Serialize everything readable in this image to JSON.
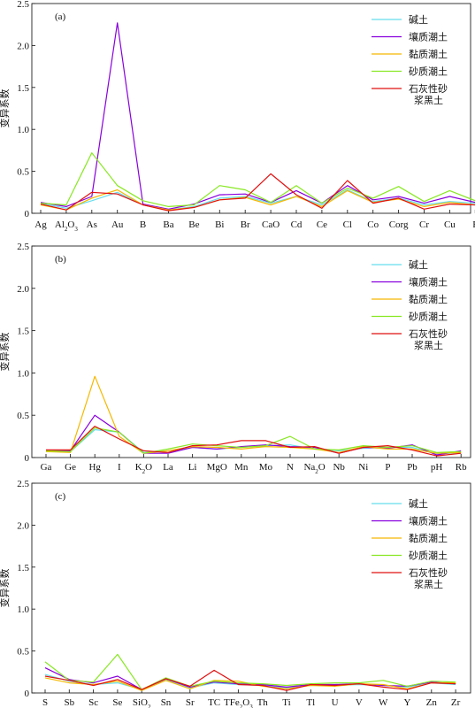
{
  "figure": {
    "ylabel": "变异系数",
    "legend": [
      "碱土",
      "壤质潮土",
      "黏质潮土",
      "砂质潮土",
      "石灰性砂\n浆黑土"
    ],
    "colors": [
      "#66ddee",
      "#8800dd",
      "#f5b800",
      "#88e822",
      "#e01010"
    ]
  },
  "chart_data": [
    {
      "type": "line",
      "panel": "(a)",
      "ylabel": "变异系数",
      "ylim": [
        0,
        2.5
      ],
      "yticks": [
        "0",
        "0.5",
        "1.0",
        "1.5",
        "2.0",
        "2.5"
      ],
      "legend_position": "top-right",
      "categories": [
        "Ag",
        "Al₂O₃",
        "As",
        "Au",
        "B",
        "Ba",
        "Be",
        "Bi",
        "Br",
        "CaO",
        "Cd",
        "Ce",
        "Cl",
        "Co",
        "Corg",
        "Cr",
        "Cu",
        "F"
      ],
      "series": [
        {
          "name": "碱土",
          "values": [
            0.12,
            0.06,
            0.15,
            0.25,
            0.1,
            0.04,
            0.08,
            0.18,
            0.2,
            0.12,
            0.2,
            0.1,
            0.28,
            0.14,
            0.18,
            0.1,
            0.14,
            0.12
          ]
        },
        {
          "name": "壤质潮土",
          "values": [
            0.13,
            0.08,
            0.2,
            2.27,
            0.11,
            0.05,
            0.11,
            0.22,
            0.23,
            0.13,
            0.27,
            0.12,
            0.33,
            0.16,
            0.2,
            0.12,
            0.2,
            0.13
          ]
        },
        {
          "name": "黏质潮土",
          "values": [
            0.1,
            0.04,
            0.18,
            0.28,
            0.1,
            0.04,
            0.07,
            0.16,
            0.19,
            0.1,
            0.2,
            0.08,
            0.27,
            0.13,
            0.17,
            0.08,
            0.13,
            0.1
          ]
        },
        {
          "name": "砂质潮土",
          "values": [
            0.12,
            0.1,
            0.72,
            0.33,
            0.15,
            0.08,
            0.1,
            0.33,
            0.28,
            0.13,
            0.33,
            0.12,
            0.3,
            0.18,
            0.32,
            0.14,
            0.27,
            0.15
          ]
        },
        {
          "name": "石灰性砂\n浆黑土",
          "values": [
            0.11,
            0.04,
            0.25,
            0.23,
            0.1,
            0.03,
            0.07,
            0.16,
            0.18,
            0.47,
            0.22,
            0.06,
            0.39,
            0.12,
            0.18,
            0.05,
            0.11,
            0.1
          ]
        }
      ]
    },
    {
      "type": "line",
      "panel": "(b)",
      "ylabel": "变异系数",
      "ylim": [
        0,
        2.5
      ],
      "yticks": [
        "0",
        "0.5",
        "1.0",
        "1.5",
        "2.0",
        "2.5"
      ],
      "legend_position": "top-right",
      "categories": [
        "Ga",
        "Ge",
        "Hg",
        "I",
        "K₂O",
        "La",
        "Li",
        "MgO",
        "Mn",
        "Mo",
        "N",
        "Na₂O",
        "Nb",
        "Ni",
        "P",
        "Pb",
        "pH",
        "Rb"
      ],
      "series": [
        {
          "name": "碱土",
          "values": [
            0.07,
            0.07,
            0.33,
            0.3,
            0.06,
            0.08,
            0.12,
            0.1,
            0.12,
            0.14,
            0.15,
            0.1,
            0.08,
            0.11,
            0.12,
            0.12,
            0.04,
            0.06
          ]
        },
        {
          "name": "壤质潮土",
          "values": [
            0.08,
            0.08,
            0.5,
            0.3,
            0.05,
            0.05,
            0.12,
            0.1,
            0.13,
            0.15,
            0.13,
            0.12,
            0.05,
            0.12,
            0.11,
            0.15,
            0.03,
            0.08
          ]
        },
        {
          "name": "黏质潮土",
          "values": [
            0.07,
            0.06,
            0.96,
            0.25,
            0.05,
            0.08,
            0.13,
            0.12,
            0.1,
            0.13,
            0.12,
            0.1,
            0.06,
            0.13,
            0.1,
            0.1,
            0.05,
            0.06
          ]
        },
        {
          "name": "砂质潮土",
          "values": [
            0.08,
            0.07,
            0.35,
            0.3,
            0.05,
            0.1,
            0.16,
            0.14,
            0.12,
            0.14,
            0.25,
            0.1,
            0.09,
            0.14,
            0.12,
            0.14,
            0.06,
            0.07
          ]
        },
        {
          "name": "石灰性砂\n浆黑土",
          "values": [
            0.09,
            0.09,
            0.37,
            0.22,
            0.08,
            0.06,
            0.14,
            0.15,
            0.2,
            0.2,
            0.12,
            0.13,
            0.05,
            0.12,
            0.14,
            0.09,
            0.02,
            0.05
          ]
        }
      ]
    },
    {
      "type": "line",
      "panel": "(c)",
      "ylabel": "变异系数",
      "ylim": [
        0,
        2.5
      ],
      "yticks": [
        "0",
        "0.5",
        "1.0",
        "1.5",
        "2.0",
        "2.5"
      ],
      "legend_position": "top-right",
      "categories": [
        "S",
        "Sb",
        "Sc",
        "Se",
        "SiO₂",
        "Sn",
        "Sr",
        "TC",
        "TFe₂O₃",
        "Th",
        "Ti",
        "Tl",
        "U",
        "V",
        "W",
        "Y",
        "Zn",
        "Zr"
      ],
      "series": [
        {
          "name": "碱土",
          "values": [
            0.22,
            0.14,
            0.1,
            0.12,
            0.04,
            0.16,
            0.06,
            0.12,
            0.1,
            0.09,
            0.06,
            0.09,
            0.09,
            0.1,
            0.09,
            0.07,
            0.12,
            0.1
          ]
        },
        {
          "name": "壤质潮土",
          "values": [
            0.3,
            0.16,
            0.12,
            0.2,
            0.04,
            0.17,
            0.07,
            0.13,
            0.11,
            0.1,
            0.07,
            0.1,
            0.1,
            0.11,
            0.09,
            0.08,
            0.13,
            0.11
          ]
        },
        {
          "name": "黏质潮土",
          "values": [
            0.18,
            0.12,
            0.1,
            0.14,
            0.03,
            0.15,
            0.05,
            0.15,
            0.14,
            0.08,
            0.05,
            0.09,
            0.08,
            0.11,
            0.1,
            0.05,
            0.12,
            0.12
          ]
        },
        {
          "name": "砂质潮土",
          "values": [
            0.37,
            0.15,
            0.13,
            0.46,
            0.04,
            0.18,
            0.08,
            0.14,
            0.12,
            0.11,
            0.09,
            0.11,
            0.12,
            0.12,
            0.15,
            0.08,
            0.14,
            0.13
          ]
        },
        {
          "name": "石灰性砂\n浆黑土",
          "values": [
            0.2,
            0.15,
            0.09,
            0.16,
            0.04,
            0.17,
            0.08,
            0.27,
            0.1,
            0.09,
            0.03,
            0.1,
            0.09,
            0.11,
            0.07,
            0.04,
            0.12,
            0.11
          ]
        }
      ]
    }
  ]
}
